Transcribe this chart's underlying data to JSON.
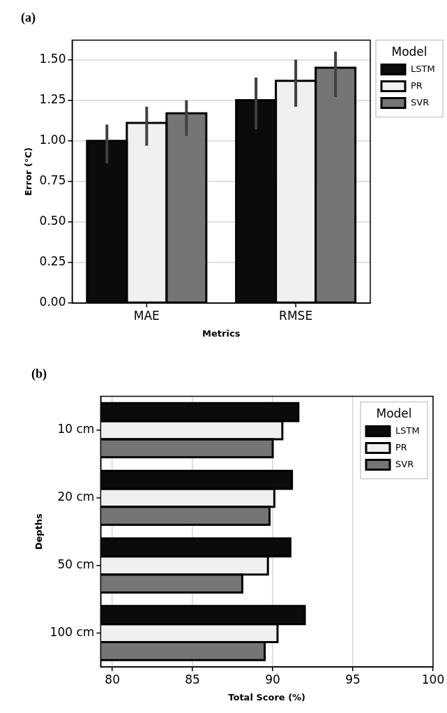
{
  "chart_data": [
    {
      "type": "bar",
      "title": "(a)",
      "xlabel": "Metrics",
      "ylabel": "Error (°C)",
      "legend_title": "Model",
      "categories": [
        "MAE",
        "RMSE"
      ],
      "series": [
        {
          "name": "LSTM",
          "color": "#0b0b0b",
          "values": [
            1.0,
            1.25
          ],
          "errors": [
            [
              0.86,
              1.1
            ],
            [
              1.07,
              1.39
            ]
          ]
        },
        {
          "name": "PR",
          "color": "#f0f0f0",
          "values": [
            1.11,
            1.37
          ],
          "errors": [
            [
              0.97,
              1.21
            ],
            [
              1.21,
              1.5
            ]
          ]
        },
        {
          "name": "SVR",
          "color": "#757575",
          "values": [
            1.17,
            1.45
          ],
          "errors": [
            [
              1.03,
              1.25
            ],
            [
              1.27,
              1.55
            ]
          ]
        }
      ],
      "ylim": [
        0,
        1.62
      ],
      "yticks": [
        {
          "value": 0,
          "label": "0.00"
        },
        {
          "value": 0.25,
          "label": "0.25"
        },
        {
          "value": 0.5,
          "label": "0.50"
        },
        {
          "value": 0.75,
          "label": "0.75"
        },
        {
          "value": 1,
          "label": "1.00"
        },
        {
          "value": 1.25,
          "label": "1.25"
        },
        {
          "value": 1.5,
          "label": "1.50"
        }
      ],
      "grid": "y",
      "legend": "right"
    },
    {
      "type": "bar",
      "orientation": "horizontal",
      "title": "(b)",
      "xlabel": "Total Score (%)",
      "ylabel": "Depths",
      "legend_title": "Model",
      "categories": [
        "10 cm",
        "20 cm",
        "50 cm",
        "100 cm"
      ],
      "series": [
        {
          "name": "LSTM",
          "color": "#0b0b0b",
          "values": [
            91.6,
            91.2,
            91.1,
            92.0
          ]
        },
        {
          "name": "PR",
          "color": "#f0f0f0",
          "values": [
            90.6,
            90.1,
            89.7,
            90.3
          ]
        },
        {
          "name": "SVR",
          "color": "#757575",
          "values": [
            90.0,
            89.8,
            88.1,
            89.5
          ]
        }
      ],
      "xlim": [
        79.27,
        100
      ],
      "xticks": [
        80,
        85,
        90,
        95,
        100
      ],
      "grid": "x",
      "legend": "top right"
    }
  ]
}
